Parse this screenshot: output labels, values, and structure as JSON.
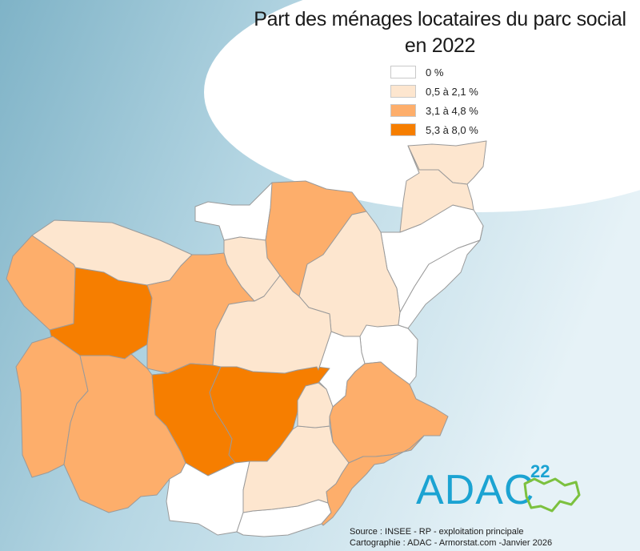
{
  "title_line1": "Part des ménages locataires du parc social",
  "title_line2": "en 2022",
  "legend": [
    {
      "label": "0 %",
      "color": "#ffffff"
    },
    {
      "label": "0,5 à 2,1 %",
      "color": "#fde6cf"
    },
    {
      "label": "3,1 à 4,8 %",
      "color": "#fdae6b"
    },
    {
      "label": "5,3 à 8,0 %",
      "color": "#f67e00"
    }
  ],
  "logo": {
    "text": "ADAC",
    "number": "22"
  },
  "source": {
    "line1": "Source : INSEE - RP - exploitation principale",
    "line2": "Cartographie : ADAC - Armorstat.com -Janvier 2026"
  },
  "map": {
    "communes": [
      {
        "class": 3
      },
      {
        "class": 1
      },
      {
        "class": 0
      },
      {
        "class": 2
      },
      {
        "class": 1
      },
      {
        "class": 2
      },
      {
        "class": 3
      },
      {
        "class": 2
      },
      {
        "class": 1
      },
      {
        "class": 0
      },
      {
        "class": 2
      },
      {
        "class": 1
      },
      {
        "class": 0
      },
      {
        "class": 1
      },
      {
        "class": 0
      },
      {
        "class": 2
      },
      {
        "class": 2
      },
      {
        "class": 3
      },
      {
        "class": 3
      },
      {
        "class": 0
      },
      {
        "class": 0
      },
      {
        "class": 1
      },
      {
        "class": 1
      },
      {
        "class": 1
      },
      {
        "class": 0
      },
      {
        "class": 2
      }
    ]
  }
}
